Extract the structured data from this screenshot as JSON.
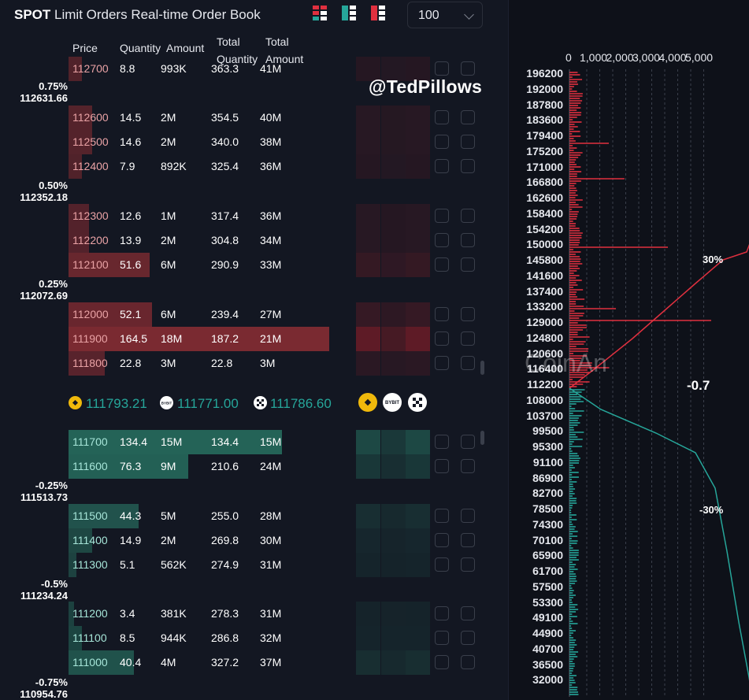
{
  "header": {
    "title_bold": "SPOT",
    "title_rest": " Limit Orders Real-time Order Book",
    "depth_select": "100",
    "view_icons": [
      "both-sides-icon",
      "bids-only-icon",
      "asks-only-icon"
    ]
  },
  "columns": {
    "price": "Price",
    "quantity": "Quantity",
    "amount": "Amount",
    "total_quantity_1": "Total",
    "total_quantity_2": "Quantity",
    "total_amount_1": "Total",
    "total_amount_2": "Amount"
  },
  "watermark": "@TedPillows",
  "asks": [
    {
      "price": "112700",
      "qty": "8.8",
      "amount": "993K",
      "total_qty": "363.3",
      "total_amt": "41M",
      "depth": 0.05
    },
    {
      "price": "112600",
      "qty": "14.5",
      "amount": "2M",
      "total_qty": "354.5",
      "total_amt": "40M",
      "depth": 0.09
    },
    {
      "price": "112500",
      "qty": "14.6",
      "amount": "2M",
      "total_qty": "340.0",
      "total_amt": "38M",
      "depth": 0.09
    },
    {
      "price": "112400",
      "qty": "7.9",
      "amount": "892K",
      "total_qty": "325.4",
      "total_amt": "36M",
      "depth": 0.05
    },
    {
      "price": "112300",
      "qty": "12.6",
      "amount": "1M",
      "total_qty": "317.4",
      "total_amt": "36M",
      "depth": 0.08
    },
    {
      "price": "112200",
      "qty": "13.9",
      "amount": "2M",
      "total_qty": "304.8",
      "total_amt": "34M",
      "depth": 0.08
    },
    {
      "price": "112100",
      "qty": "51.6",
      "amount": "6M",
      "total_qty": "290.9",
      "total_amt": "33M",
      "depth": 0.31
    },
    {
      "price": "112000",
      "qty": "52.1",
      "amount": "6M",
      "total_qty": "239.4",
      "total_amt": "27M",
      "depth": 0.32
    },
    {
      "price": "111900",
      "qty": "164.5",
      "amount": "18M",
      "total_qty": "187.2",
      "total_amt": "21M",
      "depth": 1.0
    },
    {
      "price": "111800",
      "qty": "22.8",
      "amount": "3M",
      "total_qty": "22.8",
      "total_amt": "3M",
      "depth": 0.14
    }
  ],
  "mid": [
    {
      "icon": "binance-icon",
      "value": "111793.21"
    },
    {
      "icon": "bybit-icon",
      "value": "111771.00",
      "badge": "BYBIT"
    },
    {
      "icon": "okx-icon",
      "value": "111786.60"
    }
  ],
  "bids": [
    {
      "price": "111700",
      "qty": "134.4",
      "amount": "15M",
      "total_qty": "134.4",
      "total_amt": "15M",
      "depth": 0.82
    },
    {
      "price": "111600",
      "qty": "76.3",
      "amount": "9M",
      "total_qty": "210.6",
      "total_amt": "24M",
      "depth": 0.46
    },
    {
      "price": "111500",
      "qty": "44.3",
      "amount": "5M",
      "total_qty": "255.0",
      "total_amt": "28M",
      "depth": 0.27
    },
    {
      "price": "111400",
      "qty": "14.9",
      "amount": "2M",
      "total_qty": "269.8",
      "total_amt": "30M",
      "depth": 0.09
    },
    {
      "price": "111300",
      "qty": "5.1",
      "amount": "562K",
      "total_qty": "274.9",
      "total_amt": "31M",
      "depth": 0.03
    },
    {
      "price": "111200",
      "qty": "3.4",
      "amount": "381K",
      "total_qty": "278.3",
      "total_amt": "31M",
      "depth": 0.02
    },
    {
      "price": "111100",
      "qty": "8.5",
      "amount": "944K",
      "total_qty": "286.8",
      "total_amt": "32M",
      "depth": 0.05
    },
    {
      "price": "111000",
      "qty": "40.4",
      "amount": "4M",
      "total_qty": "327.2",
      "total_amt": "37M",
      "depth": 0.25
    }
  ],
  "markers": [
    {
      "pct": "0.75%",
      "price": "112631.66"
    },
    {
      "pct": "0.50%",
      "price": "112352.18"
    },
    {
      "pct": "0.25%",
      "price": "112072.69"
    },
    {
      "pct": "-0.25%",
      "price": "111513.73"
    },
    {
      "pct": "-0.5%",
      "price": "111234.24"
    },
    {
      "pct": "-0.75%",
      "price": "110954.76"
    }
  ],
  "depth_chart": {
    "x_ticks": [
      "0",
      "1,000",
      "2,000",
      "3,000",
      "4,000",
      "5,000"
    ],
    "y_ticks": [
      "196200",
      "192000",
      "187800",
      "183600",
      "179400",
      "175200",
      "171000",
      "166800",
      "162600",
      "158400",
      "154200",
      "150000",
      "145800",
      "141600",
      "137400",
      "133200",
      "129000",
      "124800",
      "120600",
      "116400",
      "112200",
      "108000",
      "103700",
      "99500",
      "95300",
      "91100",
      "86900",
      "82700",
      "78500",
      "74300",
      "70100",
      "65900",
      "61700",
      "57500",
      "53300",
      "49100",
      "44900",
      "40700",
      "36500",
      "32000"
    ],
    "brand_watermark": "CoinAn",
    "side_text_top": "30%",
    "side_text_mid": "-0.7",
    "side_text_bottom": "-30%",
    "ask_color": "#e0303f",
    "bid_color": "#26a69a"
  },
  "colors": {
    "ask_bar": "#5c1f26",
    "bid_bar": "#1b4a43",
    "ask_bar_strong": "#7a2a31",
    "bid_bar_strong": "#246357"
  }
}
